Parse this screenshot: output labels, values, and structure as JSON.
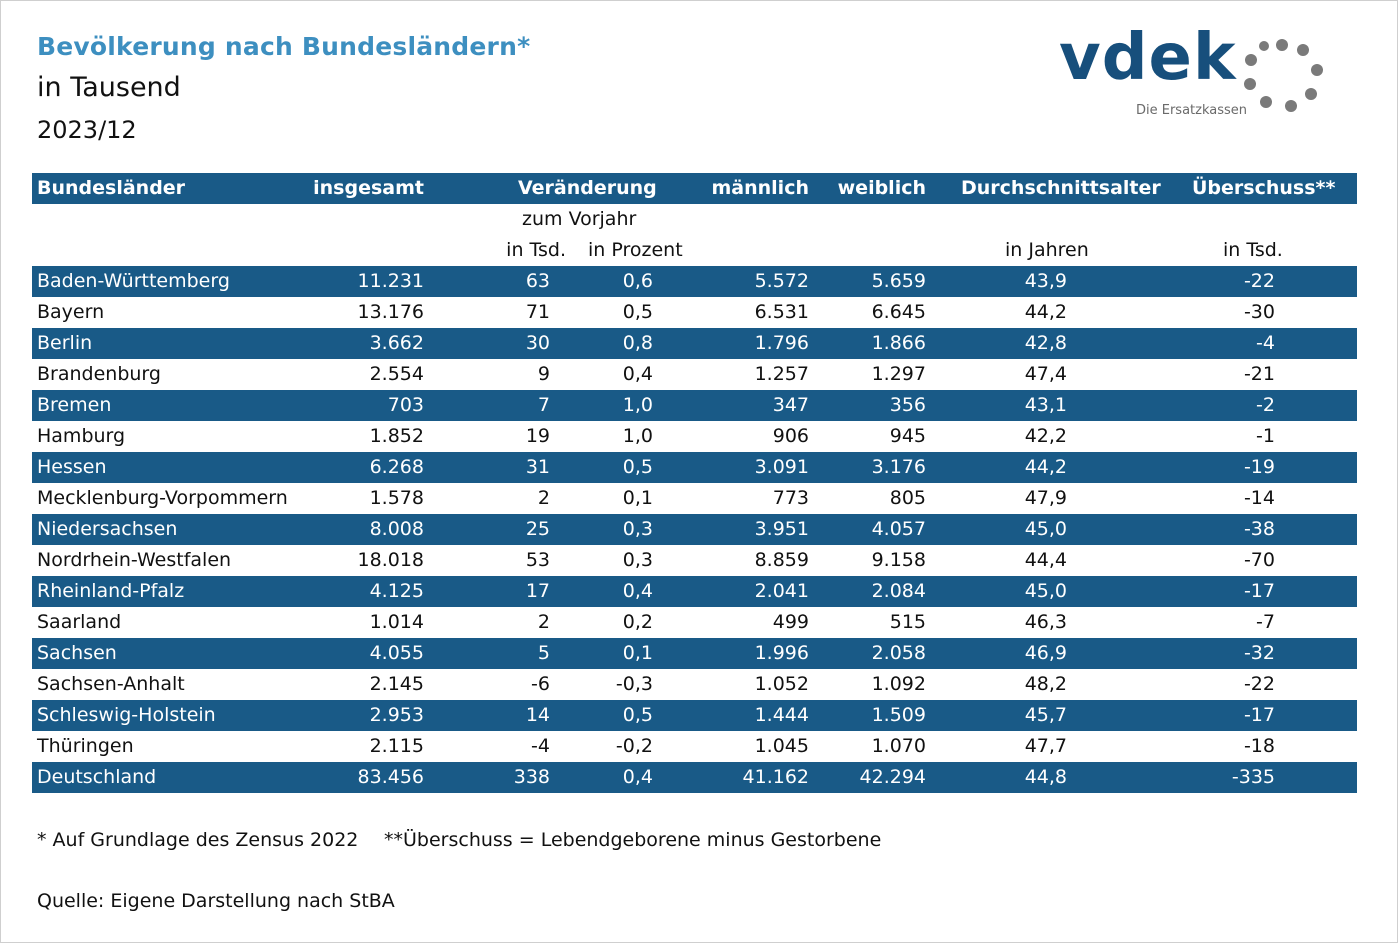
{
  "header": {
    "title": "Bevölkerung nach Bundesländern*",
    "subtitle": "in Tausend",
    "date": "2023/12"
  },
  "logo": {
    "word": "vdek",
    "tagline": "Die Ersatzkassen",
    "brand_color": "#174f7c",
    "ring_color": "#7a7a7a"
  },
  "colors": {
    "band": "#195a87",
    "title": "#3d8fc0"
  },
  "table": {
    "headers": {
      "name": "Bundesländer",
      "total": "insgesamt",
      "change": "Veränderung",
      "male": "männlich",
      "female": "weiblich",
      "age": "Durchschnittsalter",
      "surplus": "Überschuss**"
    },
    "subheaders": {
      "vorjahr": "zum Vorjahr",
      "tsd": "in Tsd.",
      "pct": "in Prozent",
      "jahre": "in Jahren",
      "surplus_tsd": "in Tsd."
    },
    "rows": [
      {
        "name": "Baden-Württemberg",
        "total": "11.231",
        "tsd": "63",
        "pct": "0,6",
        "m": "5.572",
        "w": "5.659",
        "age": "43,9",
        "sur": "-22"
      },
      {
        "name": "Bayern",
        "total": "13.176",
        "tsd": "71",
        "pct": "0,5",
        "m": "6.531",
        "w": "6.645",
        "age": "44,2",
        "sur": "-30"
      },
      {
        "name": "Berlin",
        "total": "3.662",
        "tsd": "30",
        "pct": "0,8",
        "m": "1.796",
        "w": "1.866",
        "age": "42,8",
        "sur": "-4"
      },
      {
        "name": "Brandenburg",
        "total": "2.554",
        "tsd": "9",
        "pct": "0,4",
        "m": "1.257",
        "w": "1.297",
        "age": "47,4",
        "sur": "-21"
      },
      {
        "name": "Bremen",
        "total": "703",
        "tsd": "7",
        "pct": "1,0",
        "m": "347",
        "w": "356",
        "age": "43,1",
        "sur": "-2"
      },
      {
        "name": "Hamburg",
        "total": "1.852",
        "tsd": "19",
        "pct": "1,0",
        "m": "906",
        "w": "945",
        "age": "42,2",
        "sur": "-1"
      },
      {
        "name": "Hessen",
        "total": "6.268",
        "tsd": "31",
        "pct": "0,5",
        "m": "3.091",
        "w": "3.176",
        "age": "44,2",
        "sur": "-19"
      },
      {
        "name": "Mecklenburg-Vorpommern",
        "total": "1.578",
        "tsd": "2",
        "pct": "0,1",
        "m": "773",
        "w": "805",
        "age": "47,9",
        "sur": "-14"
      },
      {
        "name": "Niedersachsen",
        "total": "8.008",
        "tsd": "25",
        "pct": "0,3",
        "m": "3.951",
        "w": "4.057",
        "age": "45,0",
        "sur": "-38"
      },
      {
        "name": "Nordrhein-Westfalen",
        "total": "18.018",
        "tsd": "53",
        "pct": "0,3",
        "m": "8.859",
        "w": "9.158",
        "age": "44,4",
        "sur": "-70"
      },
      {
        "name": "Rheinland-Pfalz",
        "total": "4.125",
        "tsd": "17",
        "pct": "0,4",
        "m": "2.041",
        "w": "2.084",
        "age": "45,0",
        "sur": "-17"
      },
      {
        "name": "Saarland",
        "total": "1.014",
        "tsd": "2",
        "pct": "0,2",
        "m": "499",
        "w": "515",
        "age": "46,3",
        "sur": "-7"
      },
      {
        "name": "Sachsen",
        "total": "4.055",
        "tsd": "5",
        "pct": "0,1",
        "m": "1.996",
        "w": "2.058",
        "age": "46,9",
        "sur": "-32"
      },
      {
        "name": "Sachsen-Anhalt",
        "total": "2.145",
        "tsd": "-6",
        "pct": "-0,3",
        "m": "1.052",
        "w": "1.092",
        "age": "48,2",
        "sur": "-22"
      },
      {
        "name": "Schleswig-Holstein",
        "total": "2.953",
        "tsd": "14",
        "pct": "0,5",
        "m": "1.444",
        "w": "1.509",
        "age": "45,7",
        "sur": "-17"
      },
      {
        "name": "Thüringen",
        "total": "2.115",
        "tsd": "-4",
        "pct": "-0,2",
        "m": "1.045",
        "w": "1.070",
        "age": "47,7",
        "sur": "-18"
      },
      {
        "name": "Deutschland",
        "total": "83.456",
        "tsd": "338",
        "pct": "0,4",
        "m": "41.162",
        "w": "42.294",
        "age": "44,8",
        "sur": "-335"
      }
    ]
  },
  "footer": {
    "note1": "* Auf Grundlage des Zensus 2022",
    "note2": "**Überschuss = Lebendgeborene minus Gestorbene",
    "source": "Quelle: Eigene Darstellung nach StBA"
  }
}
